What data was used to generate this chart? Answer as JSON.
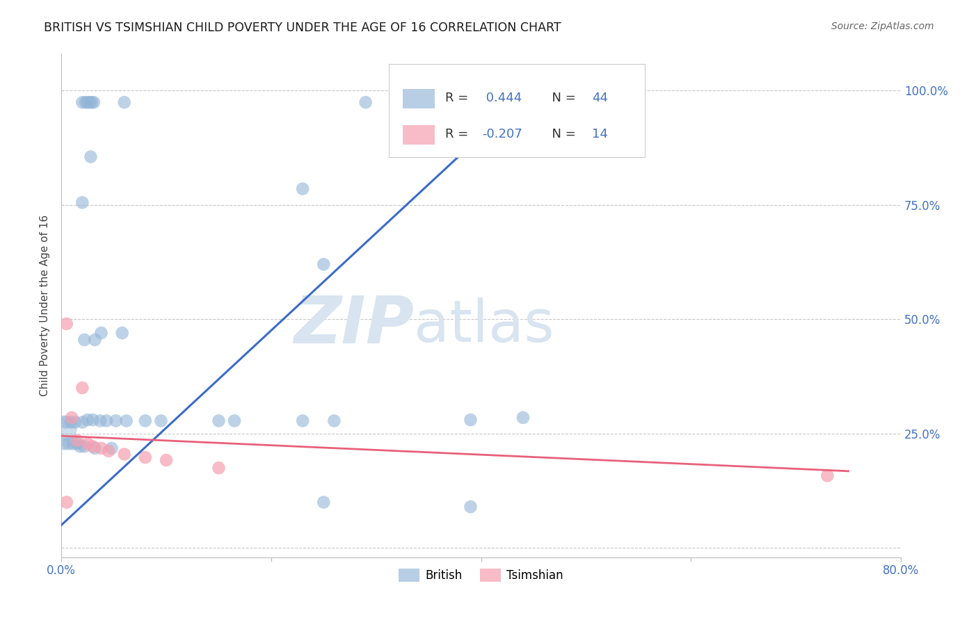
{
  "title": "BRITISH VS TSIMSHIAN CHILD POVERTY UNDER THE AGE OF 16 CORRELATION CHART",
  "source": "Source: ZipAtlas.com",
  "ylabel": "Child Poverty Under the Age of 16",
  "xlim": [
    0.0,
    0.8
  ],
  "ylim": [
    -0.02,
    1.08
  ],
  "grid_color": "#c8c8c8",
  "background_color": "#ffffff",
  "british_color": "#92b4d7",
  "tsimshian_color": "#f4a0b0",
  "british_R": "0.444",
  "british_N": "44",
  "tsimshian_R": "-0.207",
  "tsimshian_N": "14",
  "watermark_zip": "ZIP",
  "watermark_atlas": "atlas",
  "british_points": [
    [
      0.02,
      0.974
    ],
    [
      0.023,
      0.974
    ],
    [
      0.025,
      0.974
    ],
    [
      0.027,
      0.974
    ],
    [
      0.029,
      0.974
    ],
    [
      0.031,
      0.974
    ],
    [
      0.06,
      0.974
    ],
    [
      0.29,
      0.974
    ],
    [
      0.028,
      0.855
    ],
    [
      0.23,
      0.785
    ],
    [
      0.02,
      0.755
    ],
    [
      0.25,
      0.62
    ],
    [
      0.038,
      0.47
    ],
    [
      0.058,
      0.47
    ],
    [
      0.022,
      0.455
    ],
    [
      0.032,
      0.455
    ],
    [
      0.004,
      0.275
    ],
    [
      0.009,
      0.275
    ],
    [
      0.013,
      0.275
    ],
    [
      0.02,
      0.275
    ],
    [
      0.025,
      0.28
    ],
    [
      0.03,
      0.28
    ],
    [
      0.037,
      0.278
    ],
    [
      0.043,
      0.278
    ],
    [
      0.052,
      0.278
    ],
    [
      0.062,
      0.278
    ],
    [
      0.08,
      0.278
    ],
    [
      0.095,
      0.278
    ],
    [
      0.15,
      0.278
    ],
    [
      0.165,
      0.278
    ],
    [
      0.23,
      0.278
    ],
    [
      0.26,
      0.278
    ],
    [
      0.39,
      0.28
    ],
    [
      0.003,
      0.228
    ],
    [
      0.007,
      0.228
    ],
    [
      0.011,
      0.228
    ],
    [
      0.015,
      0.228
    ],
    [
      0.018,
      0.222
    ],
    [
      0.022,
      0.222
    ],
    [
      0.032,
      0.218
    ],
    [
      0.048,
      0.218
    ],
    [
      0.44,
      0.285
    ],
    [
      0.25,
      0.1
    ],
    [
      0.39,
      0.09
    ]
  ],
  "tsimshian_points": [
    [
      0.005,
      0.49
    ],
    [
      0.02,
      0.35
    ],
    [
      0.01,
      0.285
    ],
    [
      0.015,
      0.235
    ],
    [
      0.025,
      0.228
    ],
    [
      0.03,
      0.222
    ],
    [
      0.038,
      0.218
    ],
    [
      0.045,
      0.212
    ],
    [
      0.06,
      0.205
    ],
    [
      0.08,
      0.198
    ],
    [
      0.1,
      0.192
    ],
    [
      0.15,
      0.175
    ],
    [
      0.73,
      0.158
    ],
    [
      0.005,
      0.1
    ]
  ],
  "british_large_point": [
    0.003,
    0.262
  ],
  "british_line_x": [
    0.0,
    0.47
  ],
  "british_line_y": [
    0.05,
    1.05
  ],
  "tsimshian_line_x": [
    0.0,
    0.75
  ],
  "tsimshian_line_y": [
    0.245,
    0.168
  ]
}
